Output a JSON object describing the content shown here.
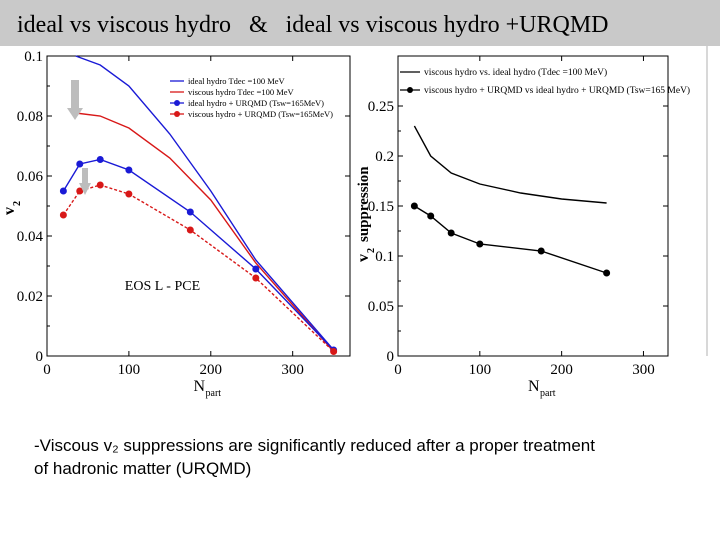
{
  "slide": {
    "title": "ideal vs viscous hydro   &   ideal vs viscous hydro +URQMD",
    "caption_line1": "-Viscous v₂ suppressions are significantly reduced after a proper treatment",
    "caption_line2": "of hadronic matter  (URQMD)"
  },
  "chart_data": [
    {
      "type": "line",
      "xlim": [
        0,
        370
      ],
      "ylim": [
        0,
        0.1
      ],
      "xticks": [
        0,
        100,
        200,
        300
      ],
      "yticks": [
        0,
        0.02,
        0.04,
        0.06,
        0.08,
        0.1
      ],
      "ytick_labels": [
        "0",
        "0.02",
        "0.04",
        "0.06",
        "0.08",
        "0.1"
      ],
      "xlabel": "N",
      "xlabel_sub": "part",
      "ylabel": "v",
      "ylabel_sub": "2",
      "annotation": "EOS L - PCE",
      "legend_position": "top-right",
      "series": [
        {
          "name": "ideal hydro Tdec =100 MeV",
          "color": "#1a1ad6",
          "marker": "none",
          "x": [
            35,
            65,
            100,
            150,
            200,
            255,
            350
          ],
          "y": [
            0.1,
            0.097,
            0.09,
            0.074,
            0.055,
            0.032,
            0.002
          ]
        },
        {
          "name": "viscous hydro Tdec =100 MeV",
          "color": "#d81818",
          "marker": "none",
          "x": [
            35,
            65,
            100,
            150,
            200,
            255,
            350
          ],
          "y": [
            0.081,
            0.08,
            0.076,
            0.066,
            0.052,
            0.031,
            0.0015
          ]
        },
        {
          "name": "ideal hydro + URQMD (Tsw=165MeV)",
          "color": "#1a1ad6",
          "marker": "circle",
          "x": [
            20,
            40,
            65,
            100,
            175,
            255,
            350
          ],
          "y": [
            0.055,
            0.064,
            0.0655,
            0.062,
            0.048,
            0.029,
            0.002
          ]
        },
        {
          "name": "viscous hydro + URQMD (Tsw=165MeV)",
          "color": "#d81818",
          "marker": "circle",
          "x": [
            20,
            40,
            65,
            100,
            175,
            255,
            350
          ],
          "y": [
            0.047,
            0.055,
            0.057,
            0.054,
            0.042,
            0.026,
            0.0015
          ]
        }
      ]
    },
    {
      "type": "line",
      "xlim": [
        0,
        330
      ],
      "ylim": [
        0,
        0.3
      ],
      "xticks": [
        0,
        100,
        200,
        300
      ],
      "yticks": [
        0,
        0.05,
        0.1,
        0.15,
        0.2,
        0.25
      ],
      "ytick_labels": [
        "0",
        "0.05",
        "0.1",
        "0.15",
        "0.2",
        "0.25"
      ],
      "xlabel": "N",
      "xlabel_sub": "part",
      "ylabel": "v",
      "ylabel_sub": "2",
      "ylabel2": "suppression",
      "legend_position": "top",
      "series": [
        {
          "name": "viscous hydro vs. ideal hydro (Tdec =100 MeV)",
          "color": "#000000",
          "marker": "none",
          "x": [
            20,
            40,
            65,
            100,
            150,
            200,
            255
          ],
          "y": [
            0.23,
            0.2,
            0.183,
            0.172,
            0.163,
            0.157,
            0.153
          ]
        },
        {
          "name": "viscous hydro + URQMD vs ideal hydro + URQMD (Tsw=165 MeV)",
          "color": "#000000",
          "marker": "circle",
          "x": [
            20,
            40,
            65,
            100,
            175,
            255
          ],
          "y": [
            0.15,
            0.14,
            0.123,
            0.112,
            0.105,
            0.083
          ]
        }
      ]
    }
  ]
}
